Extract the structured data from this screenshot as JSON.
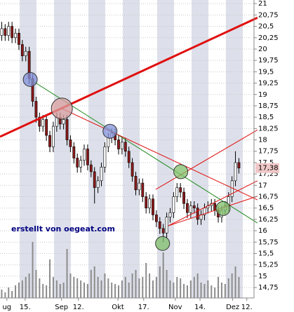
{
  "chart_data": {
    "type": "candlestick",
    "watermark": "erstellt von oegeat.com",
    "xlim": [
      -0.5,
      73.4
    ],
    "ylim": [
      14.52,
      21.08
    ],
    "xticks": [
      {
        "value": 1.5,
        "label": "ug"
      },
      {
        "value": 6.8,
        "label": "15."
      },
      {
        "value": 17.4,
        "label": "Sep"
      },
      {
        "value": 22.3,
        "label": "12."
      },
      {
        "value": 33.8,
        "label": "Okt"
      },
      {
        "value": 41.3,
        "label": "17."
      },
      {
        "value": 50.5,
        "label": "Nov"
      },
      {
        "value": 57.7,
        "label": "14."
      },
      {
        "value": 67.2,
        "label": "Dez"
      },
      {
        "value": 71.3,
        "label": "12."
      }
    ],
    "yticks": [
      {
        "value": 14.75,
        "label": "14,75"
      },
      15,
      {
        "value": 15.25,
        "label": "15,25"
      },
      {
        "value": 15.5,
        "label": "15,5"
      },
      {
        "value": 15.75,
        "label": "15,75"
      },
      16,
      {
        "value": 16.25,
        "label": "16,25"
      },
      {
        "value": 16.5,
        "label": "16,5"
      },
      {
        "value": 16.75,
        "label": "16,75"
      },
      17,
      {
        "value": 17.25,
        "label": "17,25"
      },
      {
        "value": 17.5,
        "label": "17,5"
      },
      {
        "value": 17.75,
        "label": "17,75"
      },
      18,
      {
        "value": 18.25,
        "label": "18,25"
      },
      {
        "value": 18.5,
        "label": "18,5"
      },
      {
        "value": 18.75,
        "label": "18,75"
      },
      19,
      {
        "value": 19.25,
        "label": "19,25"
      },
      {
        "value": 19.5,
        "label": "19,5"
      },
      {
        "value": 19.75,
        "label": "19,75"
      },
      20,
      {
        "value": 20.25,
        "label": "20,25"
      },
      {
        "value": 20.5,
        "label": "20,5"
      },
      {
        "value": 20.75,
        "label": "20,75"
      },
      21
    ],
    "grid": true,
    "last_price": {
      "value": 17.38,
      "label": "17,38"
    },
    "up_color": "#ffffff",
    "down_color": "#8b1a1a",
    "volume_color": "#8c8c8c",
    "open": [
      20.3,
      20.45,
      20.3,
      20.5,
      20.25,
      20.35,
      20.1,
      19.85,
      19.95,
      19.35,
      18.85,
      18.5,
      18.3,
      18.45,
      18.1,
      17.85,
      18.3,
      18.5,
      18.35,
      18.45,
      18.0,
      17.85,
      17.6,
      17.4,
      17.55,
      17.8,
      17.45,
      17.3,
      16.95,
      17.1,
      17.4,
      17.85,
      18.05,
      18.15,
      18.0,
      17.8,
      17.95,
      17.75,
      17.5,
      17.2,
      16.9,
      17.05,
      16.75,
      16.5,
      16.7,
      16.35,
      16.2,
      16.05,
      15.95,
      16.3,
      16.4,
      16.75,
      16.95,
      16.85,
      16.6,
      16.4,
      16.55,
      16.5,
      16.25,
      16.35,
      16.5,
      16.55,
      16.6,
      16.45,
      16.3,
      16.45,
      16.55,
      16.75,
      17.1,
      17.5
    ],
    "high": [
      20.6,
      20.55,
      20.6,
      20.6,
      20.45,
      20.45,
      20.2,
      20.05,
      20.05,
      19.45,
      18.95,
      18.6,
      18.55,
      18.55,
      18.2,
      18.4,
      18.6,
      18.6,
      18.55,
      18.55,
      18.1,
      17.95,
      17.7,
      17.65,
      17.9,
      17.9,
      17.55,
      17.4,
      17.2,
      17.5,
      17.95,
      18.15,
      18.25,
      18.25,
      18.1,
      18.05,
      18.05,
      17.85,
      17.6,
      17.3,
      17.15,
      17.15,
      16.85,
      16.8,
      16.8,
      16.45,
      16.3,
      16.15,
      16.4,
      16.5,
      16.85,
      17.05,
      17.05,
      16.95,
      16.7,
      16.65,
      16.65,
      16.6,
      16.45,
      16.6,
      16.65,
      16.7,
      16.7,
      16.55,
      16.55,
      16.65,
      16.85,
      17.2,
      17.75,
      17.6
    ],
    "low": [
      20.18,
      20.18,
      20.18,
      20.13,
      20.13,
      19.98,
      19.73,
      19.73,
      19.23,
      18.73,
      18.38,
      18.18,
      18.18,
      17.98,
      17.73,
      17.73,
      18.18,
      18.23,
      18.23,
      17.88,
      17.73,
      17.48,
      17.28,
      17.28,
      17.43,
      17.33,
      17.18,
      16.6,
      16.83,
      16.98,
      17.28,
      17.73,
      17.93,
      17.88,
      17.68,
      17.68,
      17.63,
      17.38,
      17.08,
      16.78,
      16.78,
      16.63,
      16.38,
      16.38,
      16.23,
      16.08,
      15.93,
      15.75,
      15.83,
      16.18,
      16.28,
      16.63,
      16.73,
      16.48,
      16.28,
      16.28,
      16.38,
      16.13,
      16.13,
      16.23,
      16.38,
      16.43,
      16.33,
      16.18,
      16.18,
      16.33,
      16.43,
      16.63,
      16.98,
      17.26
    ],
    "close": [
      20.45,
      20.3,
      20.5,
      20.25,
      20.35,
      20.1,
      19.85,
      19.95,
      19.35,
      18.85,
      18.5,
      18.3,
      18.45,
      18.1,
      17.85,
      18.3,
      18.5,
      18.35,
      18.45,
      18.0,
      17.85,
      17.6,
      17.4,
      17.55,
      17.8,
      17.45,
      17.3,
      16.95,
      17.1,
      17.4,
      17.85,
      18.05,
      18.15,
      18.0,
      17.8,
      17.95,
      17.75,
      17.5,
      17.2,
      16.9,
      17.05,
      16.75,
      16.5,
      16.7,
      16.35,
      16.2,
      16.05,
      15.95,
      16.3,
      16.4,
      16.75,
      16.95,
      16.85,
      16.6,
      16.4,
      16.55,
      16.5,
      16.25,
      16.35,
      16.5,
      16.55,
      16.6,
      16.45,
      16.3,
      16.45,
      16.55,
      16.75,
      17.1,
      17.5,
      17.38
    ],
    "volume": [
      12,
      8,
      15,
      10,
      18,
      22,
      25,
      30,
      35,
      80,
      40,
      28,
      20,
      18,
      55,
      30,
      25,
      20,
      22,
      70,
      35,
      30,
      28,
      25,
      22,
      20,
      40,
      45,
      30,
      25,
      35,
      28,
      22,
      20,
      18,
      25,
      30,
      22,
      35,
      40,
      28,
      30,
      50,
      35,
      25,
      30,
      45,
      65,
      40,
      25,
      22,
      30,
      28,
      20,
      18,
      25,
      30,
      35,
      22,
      20,
      25,
      18,
      15,
      30,
      22,
      20,
      28,
      35,
      45,
      30
    ],
    "trendlines": [
      {
        "color": "#e01010",
        "width": 3,
        "x": [
          -0.5,
          74.4
        ],
        "y": [
          18.07,
          20.69
        ]
      },
      {
        "color": "#1f8a1f",
        "width": 1,
        "x": [
          8.3,
          74.4
        ],
        "y": [
          19.33,
          16.17
        ]
      },
      {
        "color": "#e01010",
        "width": 1,
        "x": [
          17.5,
          74.4
        ],
        "y": [
          18.69,
          16.68
        ]
      },
      {
        "color": "#e01010",
        "width": 1,
        "x": [
          44.8,
          74.4
        ],
        "y": [
          16.91,
          18.22
        ]
      },
      {
        "color": "#e01010",
        "width": 1,
        "x": [
          48.5,
          74.4
        ],
        "y": [
          16.11,
          17.1
        ]
      },
      {
        "color": "#e01010",
        "width": 1,
        "x": [
          48.5,
          74.4
        ],
        "y": [
          16.11,
          16.76
        ]
      }
    ],
    "circles": [
      {
        "color": "#8090d8",
        "x": 8.3,
        "y": 19.33
      },
      {
        "color": "#d9a0a0",
        "x": 17.5,
        "y": 18.69
      },
      {
        "color": "#8090d8",
        "x": 31.5,
        "y": 18.19
      },
      {
        "color": "#7fbf6a",
        "x": 52.1,
        "y": 17.3
      },
      {
        "color": "#7fbf6a",
        "x": 64.4,
        "y": 16.49
      },
      {
        "color": "#7fbf6a",
        "x": 46.8,
        "y": 15.72
      }
    ]
  }
}
